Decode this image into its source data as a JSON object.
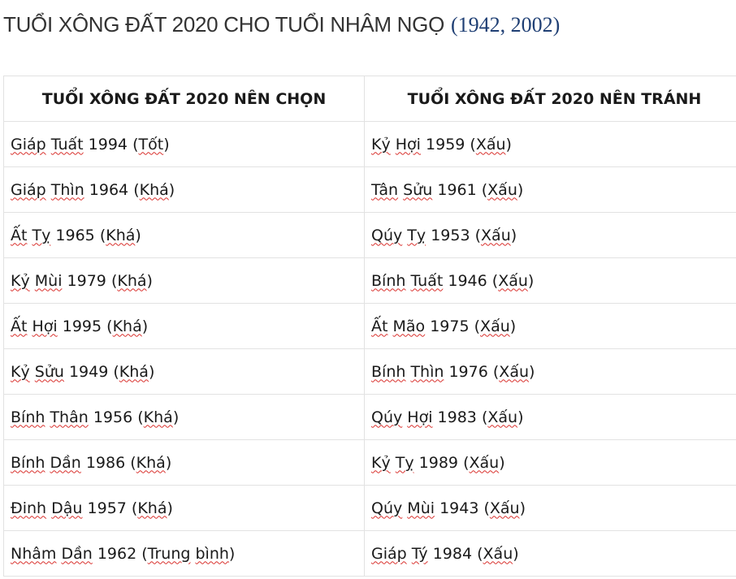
{
  "title": {
    "main": "TUỔI XÔNG ĐẤT 2020 CHO TUỔI NHÂM NGỌ",
    "years": "(1942, 2002)"
  },
  "table": {
    "headers": [
      "TUỔI XÔNG ĐẤT 2020 NÊN CHỌN",
      "TUỔI XÔNG ĐẤT 2020 NÊN TRÁNH"
    ],
    "rows": [
      [
        "Giáp Tuất 1994 (Tốt)",
        "Kỷ Hợi 1959 (Xấu)"
      ],
      [
        "Giáp Thìn 1964 (Khá)",
        "Tân Sửu 1961 (Xấu)"
      ],
      [
        "Ất Tỵ 1965 (Khá)",
        "Qúy Tỵ 1953 (Xấu)"
      ],
      [
        "Kỷ Mùi 1979 (Khá)",
        "Bính Tuất 1946 (Xấu)"
      ],
      [
        "Ất Hợi 1995 (Khá)",
        "Ất Mão 1975 (Xấu)"
      ],
      [
        "Kỷ Sửu 1949 (Khá)",
        "Bính Thìn 1976 (Xấu)"
      ],
      [
        "Bính Thân 1956 (Khá)",
        "Qúy Hợi 1983 (Xấu)"
      ],
      [
        "Bính Dần 1986 (Khá)",
        "Kỷ Tỵ 1989 (Xấu)"
      ],
      [
        "Đinh Dậu 1957 (Khá)",
        "Qúy Mùi 1943 (Xấu)"
      ],
      [
        "Nhâm Dần 1962 (Trung bình)",
        "Giáp Tý 1984 (Xấu)"
      ]
    ]
  }
}
